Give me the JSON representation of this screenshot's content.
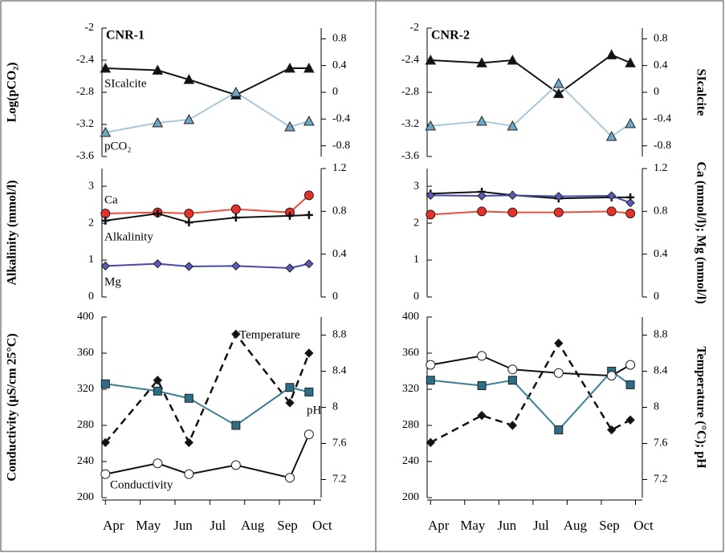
{
  "chart_data": [
    {
      "type": "line",
      "title": "CNR-1",
      "ylabel": "Log(pCO₂)",
      "x": [
        4.0,
        5.5,
        6.4,
        7.75,
        9.3,
        9.85
      ],
      "xlim": [
        3.9,
        10.2
      ],
      "ylim": [
        -3.6,
        -2
      ],
      "yticks": [
        -3.6,
        -3.2,
        -2.8,
        -2.4,
        -2
      ],
      "y2lim": [
        -0.96,
        0.96
      ],
      "y2ticks": [
        -0.8,
        -0.4,
        0,
        0.4,
        0.8
      ],
      "series": [
        {
          "name": "SIcalcite",
          "axis": "y2",
          "color": "#111111",
          "marker": "triangle",
          "marker_fill": "#111111",
          "values": [
            0.36,
            0.33,
            0.19,
            -0.04,
            0.36,
            0.36
          ]
        },
        {
          "name": "pCO₂",
          "color": "#a9c8da",
          "marker": "triangle",
          "marker_fill": "#6fa6c4",
          "values": [
            -3.3,
            -3.18,
            -3.14,
            -2.8,
            -3.23,
            -3.16
          ]
        }
      ]
    },
    {
      "type": "line",
      "ylabel": "Alkalinity (mmol/l)",
      "x": [
        4.0,
        5.5,
        6.4,
        7.75,
        9.3,
        9.85
      ],
      "xlim": [
        3.9,
        10.2
      ],
      "ylim": [
        0,
        3.48
      ],
      "yticks": [
        0,
        1,
        2,
        3
      ],
      "y2lim": [
        0,
        1.2
      ],
      "y2ticks": [
        0,
        0.4,
        0.8,
        1.2
      ],
      "series": [
        {
          "name": "Ca",
          "axis": "y2",
          "color": "#e8503f",
          "marker": "circle",
          "marker_fill": "#e8302a",
          "values": [
            0.78,
            0.79,
            0.78,
            0.82,
            0.79,
            0.95
          ]
        },
        {
          "name": "Alkalinity",
          "color": "#111111",
          "marker": "plus",
          "marker_fill": "#111111",
          "values": [
            2.07,
            2.26,
            2.02,
            2.15,
            2.2,
            2.22
          ]
        },
        {
          "name": "Mg",
          "axis": "y2",
          "color": "#4848a8",
          "marker": "diamond",
          "marker_fill": "#5a5ab8",
          "values": [
            0.29,
            0.31,
            0.285,
            0.29,
            0.27,
            0.31
          ]
        }
      ]
    },
    {
      "type": "line",
      "ylabel": "Conductivity (μS/cm 25°C)",
      "x": [
        4.0,
        5.5,
        6.4,
        7.75,
        9.3,
        9.85
      ],
      "xlim": [
        3.9,
        10.2
      ],
      "xticks": [
        {
          "value": 4,
          "label": "Apr"
        },
        {
          "value": 5,
          "label": "May"
        },
        {
          "value": 6,
          "label": "Jun"
        },
        {
          "value": 7,
          "label": "Jul"
        },
        {
          "value": 8,
          "label": "Aug"
        },
        {
          "value": 9,
          "label": "Sep"
        },
        {
          "value": 10,
          "label": "Oct"
        }
      ],
      "ylim": [
        200,
        400
      ],
      "yticks": [
        200,
        240,
        280,
        320,
        360,
        400
      ],
      "y2lim": [
        7.0,
        9.0
      ],
      "y2ticks": [
        7.2,
        7.6,
        8,
        8.4,
        8.8
      ],
      "series": [
        {
          "name": "Temperature",
          "axis": "y2",
          "color": "#111111",
          "dashed": true,
          "marker": "diamond",
          "marker_fill": "#111111",
          "values": [
            7.61,
            8.3,
            7.61,
            8.81,
            8.05,
            8.6
          ]
        },
        {
          "name": "pH",
          "axis": "y2",
          "color": "#3a7f94",
          "marker": "square",
          "marker_fill": "#2d6e86",
          "values": [
            8.26,
            8.18,
            8.1,
            7.8,
            8.22,
            8.17
          ]
        },
        {
          "name": "Conductivity",
          "color": "#111111",
          "marker": "circle",
          "marker_fill": "#ffffff",
          "values": [
            226,
            238,
            226,
            236,
            222,
            270
          ]
        }
      ]
    },
    {
      "type": "line",
      "title": "CNR-2",
      "y2label": "SIcalcite",
      "x": [
        4.0,
        5.5,
        6.4,
        7.75,
        9.3,
        9.85
      ],
      "xlim": [
        3.9,
        10.2
      ],
      "ylim": [
        -3.6,
        -2
      ],
      "yticks": [
        -3.6,
        -3.2,
        -2.8,
        -2.4,
        -2
      ],
      "y2lim": [
        -0.96,
        0.96
      ],
      "y2ticks": [
        -0.8,
        -0.4,
        0,
        0.4,
        0.8
      ],
      "series": [
        {
          "axis": "y2",
          "color": "#111111",
          "marker": "triangle",
          "marker_fill": "#111111",
          "values": [
            0.48,
            0.44,
            0.48,
            -0.02,
            0.56,
            0.44
          ]
        },
        {
          "color": "#a9c8da",
          "marker": "triangle",
          "marker_fill": "#6fa6c4",
          "values": [
            -3.22,
            -3.16,
            -3.22,
            -2.69,
            -3.35,
            -3.19
          ]
        }
      ]
    },
    {
      "type": "line",
      "y2label": "Ca (mmol/l); Mg (mmol/l)",
      "x": [
        4.0,
        5.5,
        6.4,
        7.75,
        9.3,
        9.85
      ],
      "xlim": [
        3.9,
        10.2
      ],
      "ylim": [
        0,
        3.48
      ],
      "yticks": [
        0,
        1,
        2,
        3
      ],
      "y2lim": [
        0,
        1.2
      ],
      "y2ticks": [
        0,
        0.4,
        0.8,
        1.2
      ],
      "series": [
        {
          "axis": "y2",
          "color": "#e8503f",
          "marker": "circle",
          "marker_fill": "#e8302a",
          "values": [
            0.77,
            0.8,
            0.79,
            0.79,
            0.8,
            0.78
          ]
        },
        {
          "color": "#111111",
          "marker": "plus",
          "marker_fill": "#111111",
          "values": [
            2.8,
            2.85,
            2.76,
            2.67,
            2.7,
            2.7
          ]
        },
        {
          "axis": "y2",
          "color": "#4848a8",
          "marker": "diamond",
          "marker_fill": "#5a5ab8",
          "values": [
            0.95,
            0.945,
            0.95,
            0.94,
            0.945,
            0.88
          ]
        }
      ]
    },
    {
      "type": "line",
      "y2label": "Temperature (°C); pH",
      "x": [
        4.0,
        5.5,
        6.4,
        7.75,
        9.3,
        9.85
      ],
      "xlim": [
        3.9,
        10.2
      ],
      "xticks": [
        {
          "value": 4,
          "label": "Apr"
        },
        {
          "value": 5,
          "label": "May"
        },
        {
          "value": 6,
          "label": "Jun"
        },
        {
          "value": 7,
          "label": "Jul"
        },
        {
          "value": 8,
          "label": "Aug"
        },
        {
          "value": 9,
          "label": "Sep"
        },
        {
          "value": 10,
          "label": "Oct"
        }
      ],
      "ylim": [
        200,
        400
      ],
      "yticks": [
        200,
        240,
        280,
        320,
        360,
        400
      ],
      "y2lim": [
        7.0,
        9.0
      ],
      "y2ticks": [
        7.2,
        7.6,
        8,
        8.4,
        8.8
      ],
      "series": [
        {
          "axis": "y2",
          "color": "#111111",
          "dashed": true,
          "marker": "diamond",
          "marker_fill": "#111111",
          "values": [
            7.61,
            7.91,
            7.8,
            8.71,
            7.75,
            7.86
          ]
        },
        {
          "axis": "y2",
          "color": "#3a7f94",
          "marker": "square",
          "marker_fill": "#2d6e86",
          "values": [
            8.3,
            8.24,
            8.3,
            7.75,
            8.4,
            8.25
          ]
        },
        {
          "color": "#111111",
          "marker": "circle",
          "marker_fill": "#ffffff",
          "values": [
            347,
            357,
            342,
            338,
            335,
            347
          ]
        }
      ]
    }
  ]
}
